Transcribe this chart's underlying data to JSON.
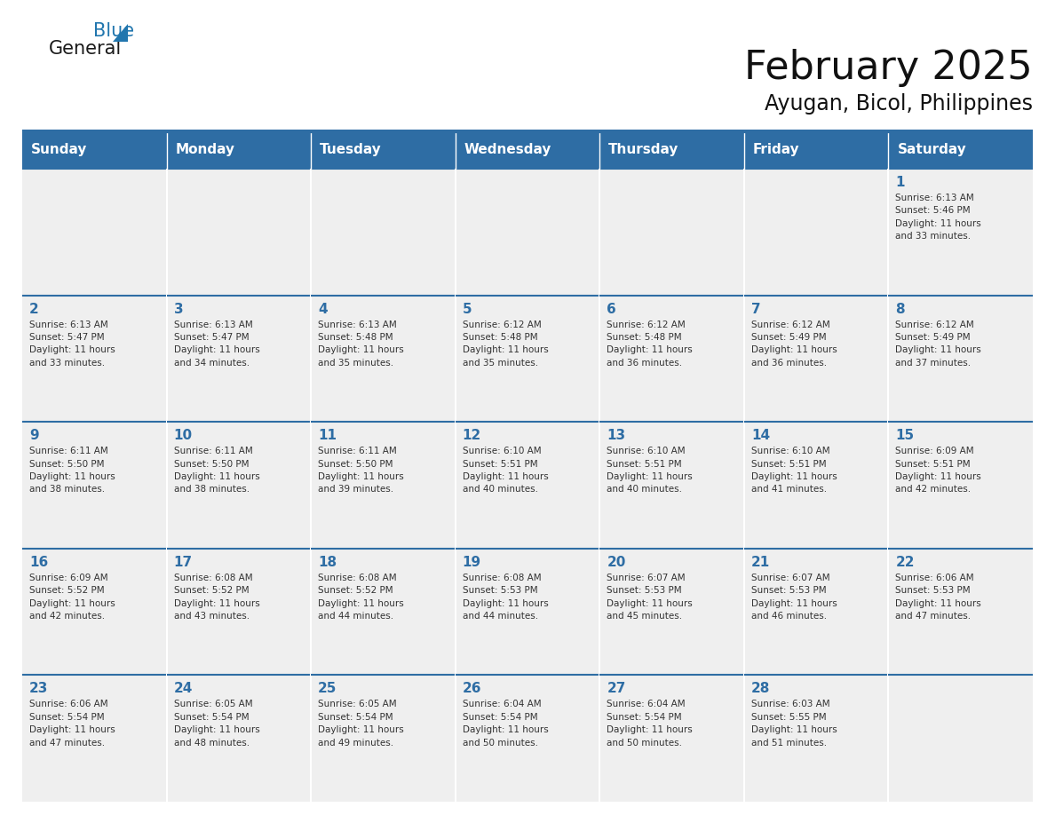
{
  "title": "February 2025",
  "subtitle": "Ayugan, Bicol, Philippines",
  "header_bg": "#2E6DA4",
  "header_text": "#FFFFFF",
  "day_names": [
    "Sunday",
    "Monday",
    "Tuesday",
    "Wednesday",
    "Thursday",
    "Friday",
    "Saturday"
  ],
  "cell_bg": "#EFEFEF",
  "day_number_color": "#2E6DA4",
  "text_color": "#333333",
  "line_color": "#2E6DA4",
  "logo_general_color": "#1A1A1A",
  "logo_blue_color": "#2176AE",
  "weeks": [
    [
      {
        "day": null,
        "info": null
      },
      {
        "day": null,
        "info": null
      },
      {
        "day": null,
        "info": null
      },
      {
        "day": null,
        "info": null
      },
      {
        "day": null,
        "info": null
      },
      {
        "day": null,
        "info": null
      },
      {
        "day": "1",
        "info": "Sunrise: 6:13 AM\nSunset: 5:46 PM\nDaylight: 11 hours\nand 33 minutes."
      }
    ],
    [
      {
        "day": "2",
        "info": "Sunrise: 6:13 AM\nSunset: 5:47 PM\nDaylight: 11 hours\nand 33 minutes."
      },
      {
        "day": "3",
        "info": "Sunrise: 6:13 AM\nSunset: 5:47 PM\nDaylight: 11 hours\nand 34 minutes."
      },
      {
        "day": "4",
        "info": "Sunrise: 6:13 AM\nSunset: 5:48 PM\nDaylight: 11 hours\nand 35 minutes."
      },
      {
        "day": "5",
        "info": "Sunrise: 6:12 AM\nSunset: 5:48 PM\nDaylight: 11 hours\nand 35 minutes."
      },
      {
        "day": "6",
        "info": "Sunrise: 6:12 AM\nSunset: 5:48 PM\nDaylight: 11 hours\nand 36 minutes."
      },
      {
        "day": "7",
        "info": "Sunrise: 6:12 AM\nSunset: 5:49 PM\nDaylight: 11 hours\nand 36 minutes."
      },
      {
        "day": "8",
        "info": "Sunrise: 6:12 AM\nSunset: 5:49 PM\nDaylight: 11 hours\nand 37 minutes."
      }
    ],
    [
      {
        "day": "9",
        "info": "Sunrise: 6:11 AM\nSunset: 5:50 PM\nDaylight: 11 hours\nand 38 minutes."
      },
      {
        "day": "10",
        "info": "Sunrise: 6:11 AM\nSunset: 5:50 PM\nDaylight: 11 hours\nand 38 minutes."
      },
      {
        "day": "11",
        "info": "Sunrise: 6:11 AM\nSunset: 5:50 PM\nDaylight: 11 hours\nand 39 minutes."
      },
      {
        "day": "12",
        "info": "Sunrise: 6:10 AM\nSunset: 5:51 PM\nDaylight: 11 hours\nand 40 minutes."
      },
      {
        "day": "13",
        "info": "Sunrise: 6:10 AM\nSunset: 5:51 PM\nDaylight: 11 hours\nand 40 minutes."
      },
      {
        "day": "14",
        "info": "Sunrise: 6:10 AM\nSunset: 5:51 PM\nDaylight: 11 hours\nand 41 minutes."
      },
      {
        "day": "15",
        "info": "Sunrise: 6:09 AM\nSunset: 5:51 PM\nDaylight: 11 hours\nand 42 minutes."
      }
    ],
    [
      {
        "day": "16",
        "info": "Sunrise: 6:09 AM\nSunset: 5:52 PM\nDaylight: 11 hours\nand 42 minutes."
      },
      {
        "day": "17",
        "info": "Sunrise: 6:08 AM\nSunset: 5:52 PM\nDaylight: 11 hours\nand 43 minutes."
      },
      {
        "day": "18",
        "info": "Sunrise: 6:08 AM\nSunset: 5:52 PM\nDaylight: 11 hours\nand 44 minutes."
      },
      {
        "day": "19",
        "info": "Sunrise: 6:08 AM\nSunset: 5:53 PM\nDaylight: 11 hours\nand 44 minutes."
      },
      {
        "day": "20",
        "info": "Sunrise: 6:07 AM\nSunset: 5:53 PM\nDaylight: 11 hours\nand 45 minutes."
      },
      {
        "day": "21",
        "info": "Sunrise: 6:07 AM\nSunset: 5:53 PM\nDaylight: 11 hours\nand 46 minutes."
      },
      {
        "day": "22",
        "info": "Sunrise: 6:06 AM\nSunset: 5:53 PM\nDaylight: 11 hours\nand 47 minutes."
      }
    ],
    [
      {
        "day": "23",
        "info": "Sunrise: 6:06 AM\nSunset: 5:54 PM\nDaylight: 11 hours\nand 47 minutes."
      },
      {
        "day": "24",
        "info": "Sunrise: 6:05 AM\nSunset: 5:54 PM\nDaylight: 11 hours\nand 48 minutes."
      },
      {
        "day": "25",
        "info": "Sunrise: 6:05 AM\nSunset: 5:54 PM\nDaylight: 11 hours\nand 49 minutes."
      },
      {
        "day": "26",
        "info": "Sunrise: 6:04 AM\nSunset: 5:54 PM\nDaylight: 11 hours\nand 50 minutes."
      },
      {
        "day": "27",
        "info": "Sunrise: 6:04 AM\nSunset: 5:54 PM\nDaylight: 11 hours\nand 50 minutes."
      },
      {
        "day": "28",
        "info": "Sunrise: 6:03 AM\nSunset: 5:55 PM\nDaylight: 11 hours\nand 51 minutes."
      },
      {
        "day": null,
        "info": null
      }
    ]
  ]
}
